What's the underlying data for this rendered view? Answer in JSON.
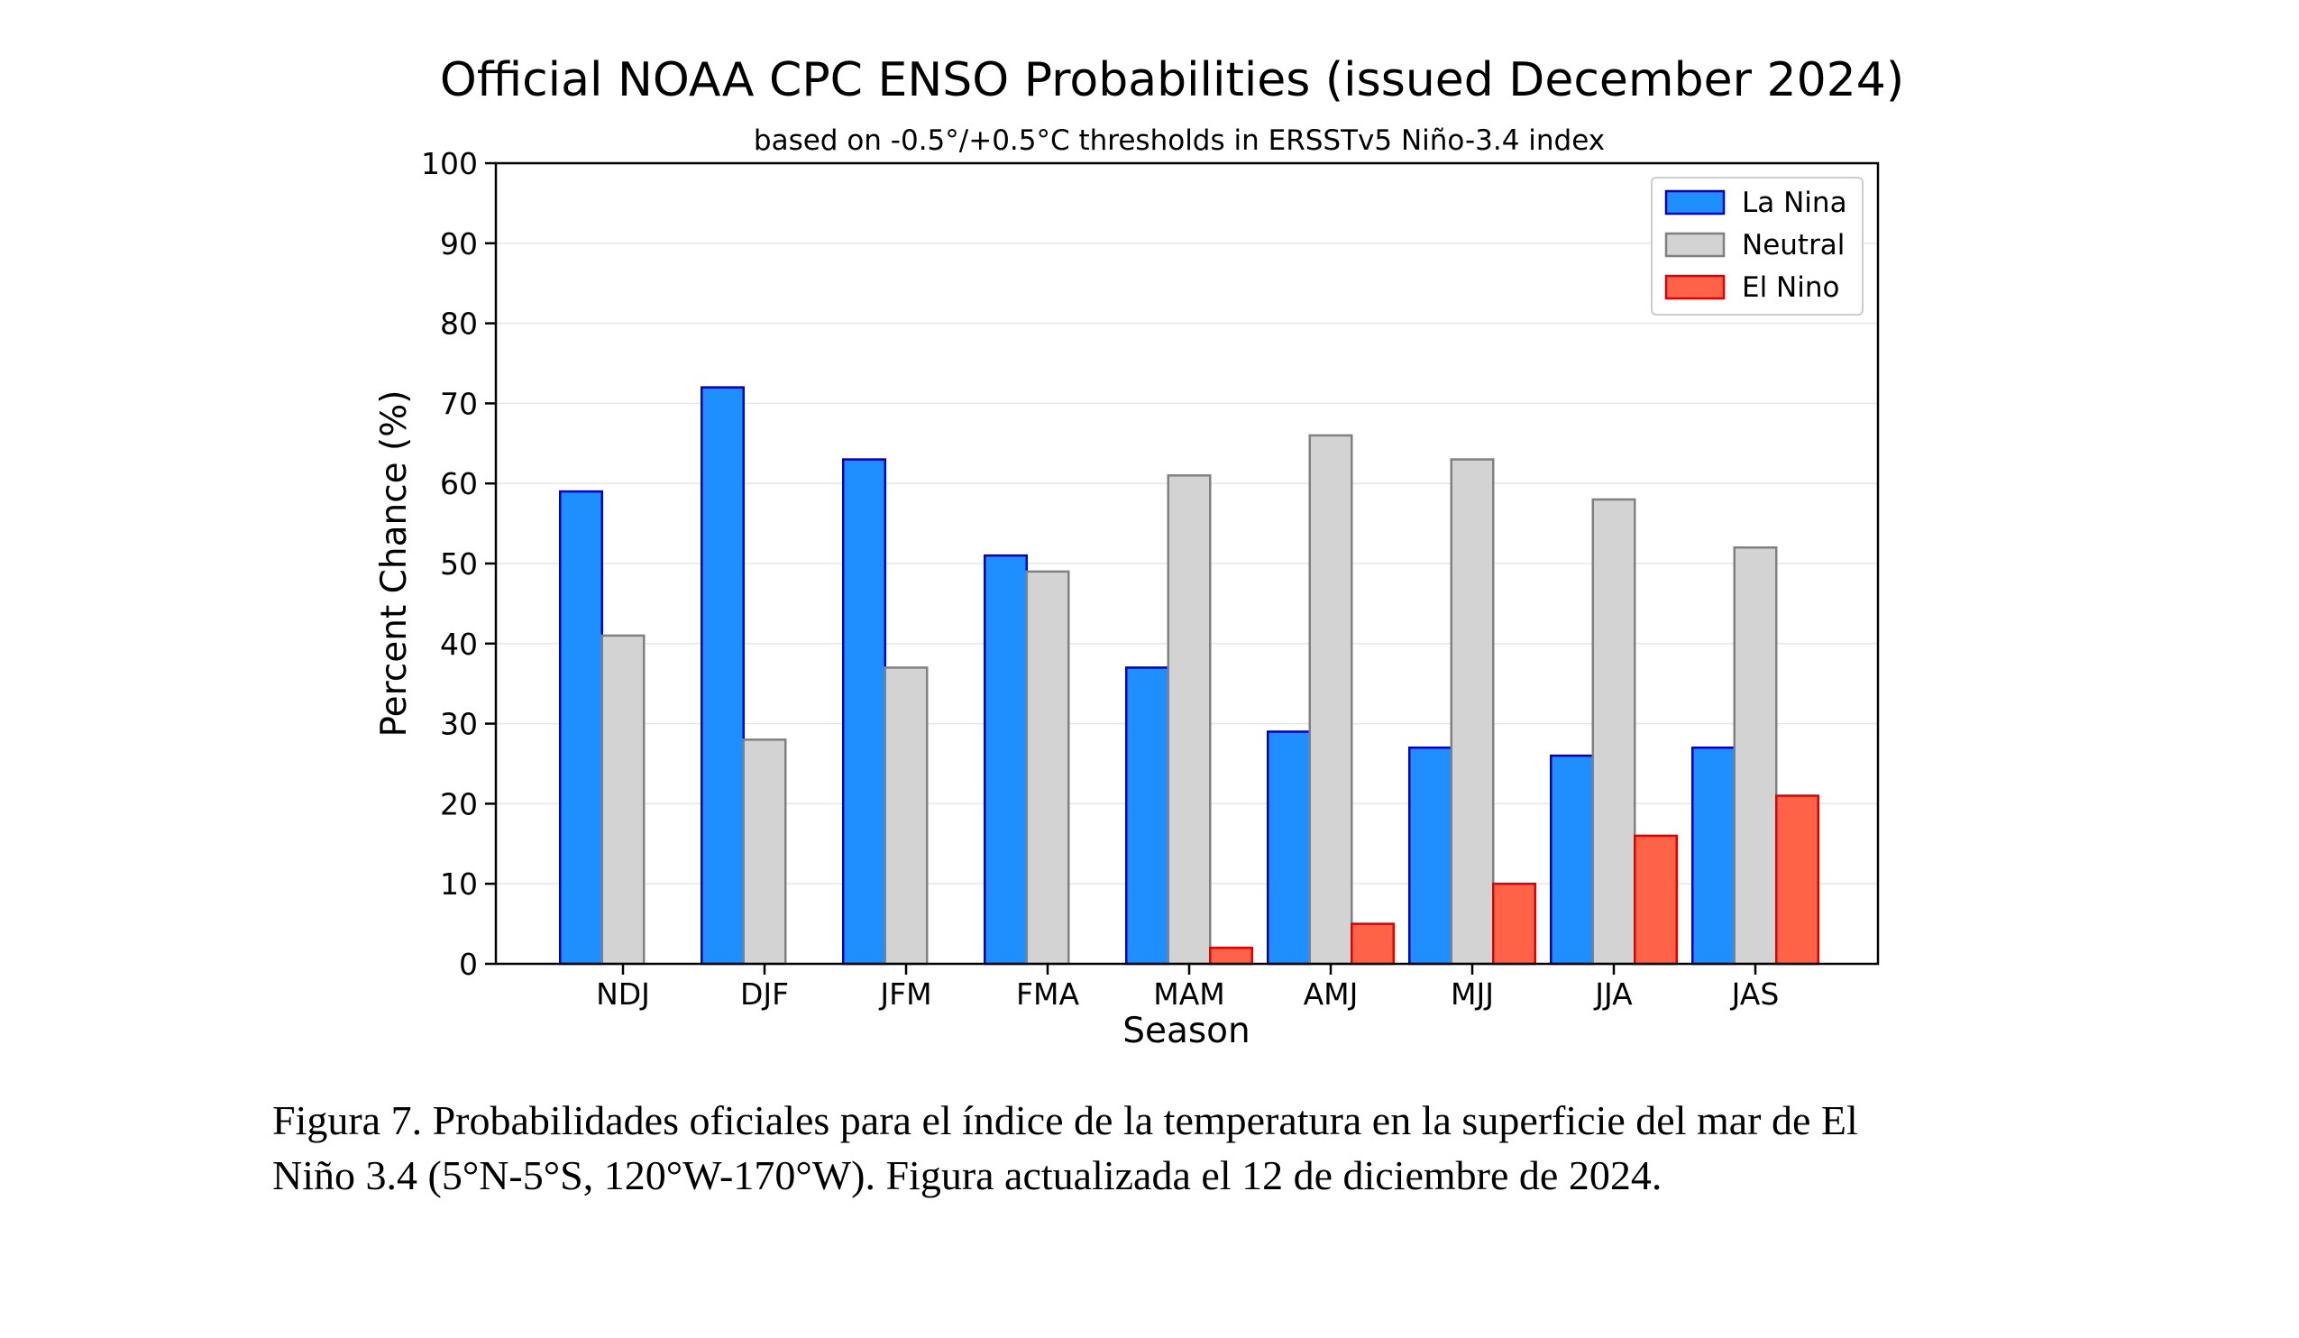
{
  "chart_data": {
    "type": "bar",
    "title": "Official NOAA CPC ENSO Probabilities (issued December 2024)",
    "subtitle": "based on -0.5°/+0.5°C thresholds in ERSSTv5 Niño-3.4 index",
    "xlabel": "Season",
    "ylabel": "Percent Chance (%)",
    "ylim": [
      0,
      100
    ],
    "yticks": [
      0,
      10,
      20,
      30,
      40,
      50,
      60,
      70,
      80,
      90,
      100
    ],
    "grid": "horizontal",
    "legend_position": "top-right",
    "categories": [
      "NDJ",
      "DJF",
      "JFM",
      "FMA",
      "MAM",
      "AMJ",
      "MJJ",
      "JJA",
      "JAS"
    ],
    "series": [
      {
        "name": "La Nina",
        "color": "#1f8fff",
        "edge_color": "#0000cc",
        "values": [
          59,
          72,
          63,
          51,
          37,
          29,
          27,
          26,
          27
        ]
      },
      {
        "name": "Neutral",
        "color": "#d3d3d3",
        "edge_color": "#808080",
        "values": [
          41,
          28,
          37,
          49,
          61,
          66,
          63,
          58,
          52
        ]
      },
      {
        "name": "El Nino",
        "color": "#ff6347",
        "edge_color": "#e00000",
        "values": [
          0,
          0,
          0,
          0,
          2,
          5,
          10,
          16,
          21
        ]
      }
    ]
  },
  "caption": {
    "line1": "Figura 7. Probabilidades oficiales para el índice de la temperatura en la superficie del mar de El",
    "line2": "Niño 3.4  (5°N-5°S, 120°W-170°W). Figura actualizada el 12 de diciembre de 2024."
  }
}
